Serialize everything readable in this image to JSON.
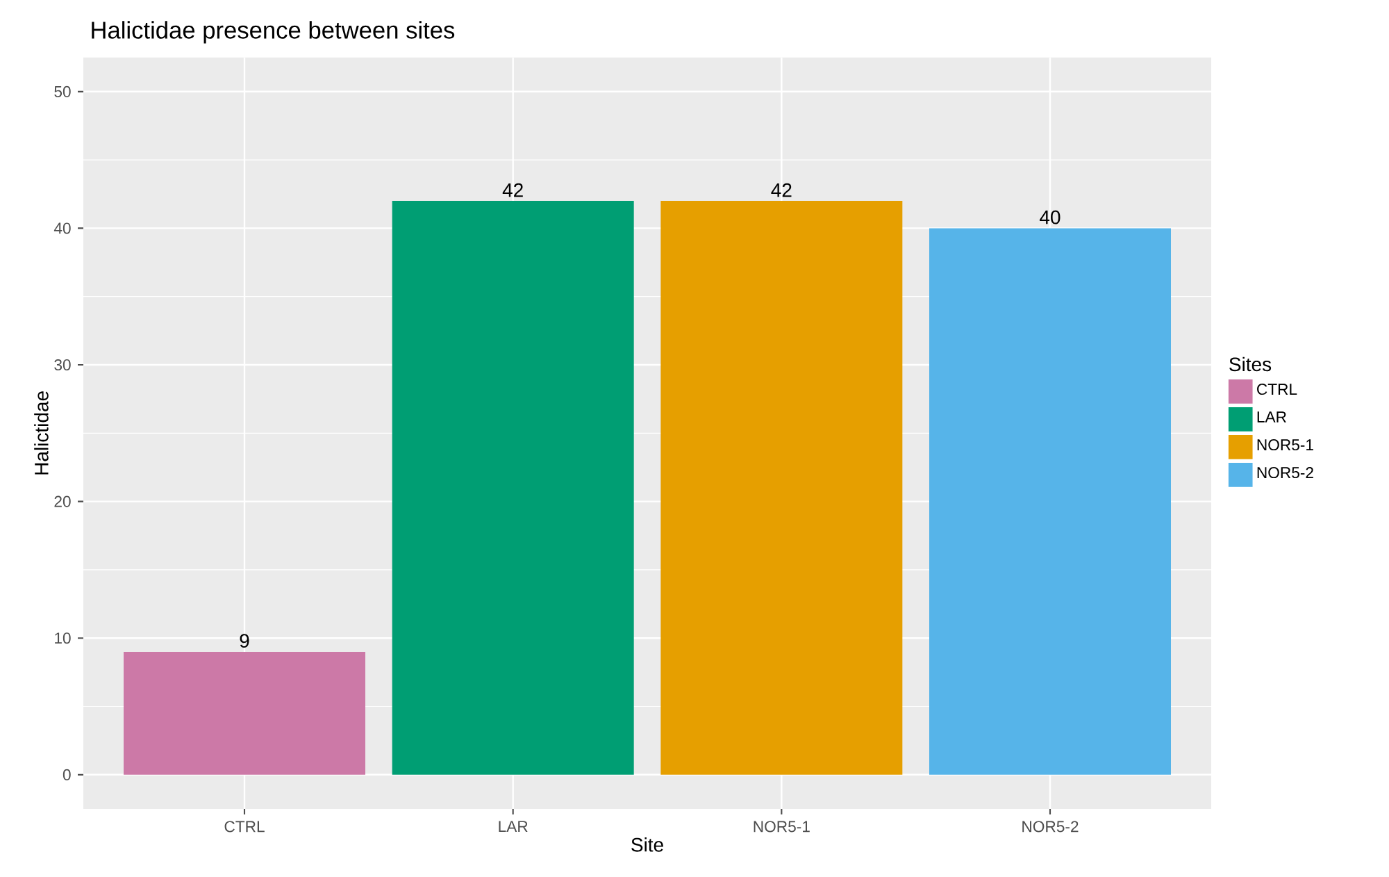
{
  "chart_data": {
    "type": "bar",
    "title": "Halictidae presence between sites",
    "xlabel": "Site",
    "ylabel": "Halictidae",
    "legend_title": "Sites",
    "categories": [
      "CTRL",
      "LAR",
      "NOR5-1",
      "NOR5-2"
    ],
    "series": [
      {
        "name": "CTRL",
        "color": "#cc79a7",
        "values": [
          9,
          null,
          null,
          null
        ]
      },
      {
        "name": "LAR",
        "color": "#009e73",
        "values": [
          null,
          42,
          null,
          null
        ]
      },
      {
        "name": "NOR5-1",
        "color": "#e69f00",
        "values": [
          null,
          null,
          42,
          null
        ]
      },
      {
        "name": "NOR5-2",
        "color": "#56b4e9",
        "values": [
          null,
          null,
          null,
          40
        ]
      }
    ],
    "ylim": [
      -2.5,
      52.5
    ],
    "yticks": [
      0,
      10,
      20,
      30,
      40,
      50
    ],
    "grid": true,
    "legend": "right",
    "data_labels": true
  }
}
